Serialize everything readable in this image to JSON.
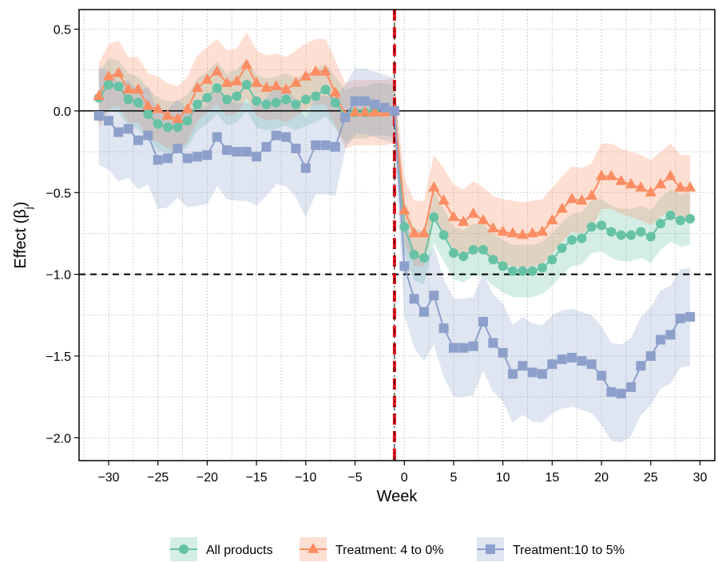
{
  "chart_data": {
    "type": "line",
    "xlabel": "Week",
    "ylabel_main": "Effect (β",
    "ylabel_sub": "j",
    "ylabel_close": ")",
    "xlim": [
      -33,
      31.5
    ],
    "ylim": [
      -2.14,
      0.62
    ],
    "xticks": [
      -30,
      -25,
      -20,
      -15,
      -10,
      -5,
      0,
      5,
      10,
      15,
      20,
      25,
      30
    ],
    "xtick_labels": [
      "−30",
      "−25",
      "−20",
      "−15",
      "−10",
      "−5",
      "0",
      "5",
      "10",
      "15",
      "20",
      "25",
      "30"
    ],
    "yticks": [
      0.5,
      0.0,
      -0.5,
      -1.0,
      -1.5,
      -2.0
    ],
    "ytick_labels": [
      "0.5",
      "0.0",
      "−0.5",
      "−1.0",
      "−1.5",
      "−2.0"
    ],
    "grid": true,
    "legend_position": "bottom",
    "reference_lines": {
      "horizontal_solid": 0.0,
      "horizontal_dashed": -1.0,
      "vertical_dashed_red": -1,
      "color_red": "#e8141c"
    },
    "x": [
      -31,
      -30,
      -29,
      -28,
      -27,
      -26,
      -25,
      -24,
      -23,
      -22,
      -21,
      -20,
      -19,
      -18,
      -17,
      -16,
      -15,
      -14,
      -13,
      -12,
      -11,
      -10,
      -9,
      -8,
      -7,
      -6,
      -5,
      -4,
      -3,
      -2,
      -1,
      0,
      1,
      2,
      3,
      4,
      5,
      6,
      7,
      8,
      9,
      10,
      11,
      12,
      13,
      14,
      15,
      16,
      17,
      18,
      19,
      20,
      21,
      22,
      23,
      24,
      25,
      26,
      27,
      28,
      29
    ],
    "series": [
      {
        "name": "All products",
        "color": "#66c2a5",
        "marker": "circle",
        "values": [
          0.08,
          0.16,
          0.15,
          0.07,
          0.05,
          -0.02,
          -0.08,
          -0.1,
          -0.1,
          -0.06,
          0.04,
          0.08,
          0.14,
          0.07,
          0.09,
          0.16,
          0.06,
          0.04,
          0.05,
          0.07,
          0.04,
          0.07,
          0.09,
          0.13,
          0.05,
          -0.03,
          -0.01,
          -0.01,
          0.01,
          0.01,
          0.0,
          -0.71,
          -0.88,
          -0.9,
          -0.65,
          -0.76,
          -0.87,
          -0.89,
          -0.85,
          -0.85,
          -0.91,
          -0.95,
          -0.98,
          -0.98,
          -0.98,
          -0.96,
          -0.91,
          -0.84,
          -0.79,
          -0.78,
          -0.71,
          -0.7,
          -0.74,
          -0.76,
          -0.76,
          -0.74,
          -0.77,
          -0.69,
          -0.64,
          -0.67,
          -0.66
        ],
        "lower": [
          -0.08,
          0.0,
          -0.01,
          -0.09,
          -0.11,
          -0.18,
          -0.24,
          -0.26,
          -0.26,
          -0.22,
          -0.12,
          -0.08,
          -0.02,
          -0.09,
          -0.07,
          0.0,
          -0.1,
          -0.12,
          -0.11,
          -0.09,
          -0.12,
          -0.09,
          -0.07,
          -0.03,
          -0.11,
          -0.19,
          -0.17,
          -0.17,
          -0.15,
          -0.15,
          -0.16,
          -0.87,
          -1.04,
          -1.06,
          -0.81,
          -0.92,
          -1.03,
          -1.05,
          -1.01,
          -1.01,
          -1.07,
          -1.11,
          -1.14,
          -1.14,
          -1.14,
          -1.12,
          -1.07,
          -1.0,
          -0.95,
          -0.94,
          -0.87,
          -0.86,
          -0.9,
          -0.92,
          -0.92,
          -0.9,
          -0.93,
          -0.85,
          -0.8,
          -0.83,
          -0.82
        ],
        "upper": [
          0.24,
          0.32,
          0.31,
          0.23,
          0.21,
          0.14,
          0.08,
          0.06,
          0.06,
          0.1,
          0.2,
          0.24,
          0.3,
          0.23,
          0.25,
          0.32,
          0.22,
          0.2,
          0.21,
          0.23,
          0.2,
          0.23,
          0.25,
          0.29,
          0.21,
          0.13,
          0.15,
          0.15,
          0.17,
          0.17,
          0.16,
          -0.55,
          -0.72,
          -0.74,
          -0.49,
          -0.6,
          -0.71,
          -0.73,
          -0.69,
          -0.69,
          -0.75,
          -0.79,
          -0.82,
          -0.82,
          -0.82,
          -0.8,
          -0.75,
          -0.68,
          -0.63,
          -0.62,
          -0.55,
          -0.54,
          -0.58,
          -0.6,
          -0.6,
          -0.58,
          -0.61,
          -0.53,
          -0.48,
          -0.51,
          -0.5
        ]
      },
      {
        "name": "Treatment: 4 to 0%",
        "color": "#fc8d62",
        "marker": "triangle",
        "values": [
          0.09,
          0.21,
          0.23,
          0.13,
          0.13,
          0.03,
          0.01,
          -0.03,
          -0.05,
          0.01,
          0.14,
          0.19,
          0.24,
          0.17,
          0.18,
          0.28,
          0.17,
          0.14,
          0.15,
          0.13,
          0.17,
          0.21,
          0.24,
          0.24,
          0.11,
          -0.03,
          -0.01,
          -0.01,
          -0.01,
          -0.01,
          0.0,
          -0.61,
          -0.75,
          -0.75,
          -0.47,
          -0.55,
          -0.65,
          -0.68,
          -0.63,
          -0.67,
          -0.72,
          -0.74,
          -0.75,
          -0.76,
          -0.75,
          -0.74,
          -0.67,
          -0.6,
          -0.54,
          -0.55,
          -0.52,
          -0.4,
          -0.4,
          -0.43,
          -0.45,
          -0.47,
          -0.5,
          -0.45,
          -0.4,
          -0.47,
          -0.47
        ],
        "lower": [
          -0.11,
          0.01,
          0.03,
          -0.07,
          -0.07,
          -0.17,
          -0.19,
          -0.23,
          -0.25,
          -0.19,
          -0.06,
          -0.01,
          0.04,
          -0.03,
          -0.02,
          0.08,
          -0.03,
          -0.06,
          -0.05,
          -0.07,
          -0.03,
          0.01,
          0.04,
          0.04,
          -0.09,
          -0.23,
          -0.21,
          -0.21,
          -0.21,
          -0.21,
          -0.2,
          -0.81,
          -0.95,
          -0.95,
          -0.67,
          -0.75,
          -0.85,
          -0.88,
          -0.83,
          -0.87,
          -0.92,
          -0.94,
          -0.95,
          -0.96,
          -0.95,
          -0.94,
          -0.87,
          -0.8,
          -0.74,
          -0.75,
          -0.72,
          -0.6,
          -0.6,
          -0.63,
          -0.65,
          -0.67,
          -0.7,
          -0.65,
          -0.6,
          -0.67,
          -0.67
        ],
        "upper": [
          0.29,
          0.41,
          0.43,
          0.33,
          0.33,
          0.23,
          0.21,
          0.17,
          0.15,
          0.21,
          0.34,
          0.39,
          0.44,
          0.37,
          0.38,
          0.48,
          0.37,
          0.34,
          0.35,
          0.33,
          0.37,
          0.41,
          0.44,
          0.44,
          0.31,
          0.17,
          0.19,
          0.19,
          0.19,
          0.19,
          0.2,
          -0.41,
          -0.55,
          -0.55,
          -0.27,
          -0.35,
          -0.45,
          -0.48,
          -0.43,
          -0.47,
          -0.52,
          -0.54,
          -0.55,
          -0.56,
          -0.55,
          -0.54,
          -0.47,
          -0.4,
          -0.34,
          -0.35,
          -0.32,
          -0.2,
          -0.2,
          -0.23,
          -0.25,
          -0.27,
          -0.3,
          -0.25,
          -0.2,
          -0.27,
          -0.27
        ]
      },
      {
        "name": "Treatment:10 to 5%",
        "color": "#8da0cb",
        "marker": "square",
        "values": [
          -0.03,
          -0.06,
          -0.13,
          -0.11,
          -0.18,
          -0.15,
          -0.3,
          -0.29,
          -0.23,
          -0.29,
          -0.28,
          -0.27,
          -0.16,
          -0.24,
          -0.25,
          -0.25,
          -0.28,
          -0.22,
          -0.15,
          -0.16,
          -0.23,
          -0.35,
          -0.21,
          -0.21,
          -0.22,
          -0.04,
          0.06,
          0.06,
          0.04,
          0.02,
          0.0,
          -0.95,
          -1.15,
          -1.23,
          -1.13,
          -1.33,
          -1.45,
          -1.45,
          -1.44,
          -1.29,
          -1.42,
          -1.48,
          -1.61,
          -1.56,
          -1.6,
          -1.61,
          -1.55,
          -1.52,
          -1.51,
          -1.53,
          -1.55,
          -1.62,
          -1.72,
          -1.73,
          -1.69,
          -1.56,
          -1.5,
          -1.4,
          -1.37,
          -1.27,
          -1.26
        ],
        "lower": [
          -0.33,
          -0.36,
          -0.43,
          -0.41,
          -0.48,
          -0.45,
          -0.6,
          -0.59,
          -0.53,
          -0.59,
          -0.58,
          -0.57,
          -0.46,
          -0.54,
          -0.55,
          -0.55,
          -0.58,
          -0.52,
          -0.45,
          -0.46,
          -0.53,
          -0.65,
          -0.51,
          -0.51,
          -0.52,
          -0.24,
          -0.14,
          -0.14,
          -0.16,
          -0.18,
          -0.2,
          -1.25,
          -1.45,
          -1.53,
          -1.43,
          -1.63,
          -1.75,
          -1.75,
          -1.74,
          -1.59,
          -1.72,
          -1.78,
          -1.91,
          -1.86,
          -1.9,
          -1.91,
          -1.85,
          -1.82,
          -1.81,
          -1.83,
          -1.85,
          -1.92,
          -2.02,
          -2.03,
          -1.99,
          -1.86,
          -1.8,
          -1.7,
          -1.67,
          -1.57,
          -1.56
        ],
        "upper": [
          0.27,
          0.24,
          0.17,
          0.19,
          0.12,
          0.15,
          0.0,
          0.01,
          0.07,
          0.01,
          0.02,
          0.03,
          0.14,
          0.06,
          0.05,
          0.05,
          0.02,
          0.08,
          0.15,
          0.14,
          0.07,
          -0.05,
          0.09,
          0.09,
          0.08,
          0.16,
          0.26,
          0.26,
          0.24,
          0.22,
          0.2,
          -0.65,
          -0.85,
          -0.93,
          -0.83,
          -1.03,
          -1.15,
          -1.15,
          -1.14,
          -0.99,
          -1.12,
          -1.18,
          -1.31,
          -1.26,
          -1.3,
          -1.31,
          -1.25,
          -1.22,
          -1.21,
          -1.23,
          -1.25,
          -1.32,
          -1.42,
          -1.43,
          -1.39,
          -1.26,
          -1.2,
          -1.1,
          -1.07,
          -0.97,
          -0.96
        ]
      }
    ]
  }
}
